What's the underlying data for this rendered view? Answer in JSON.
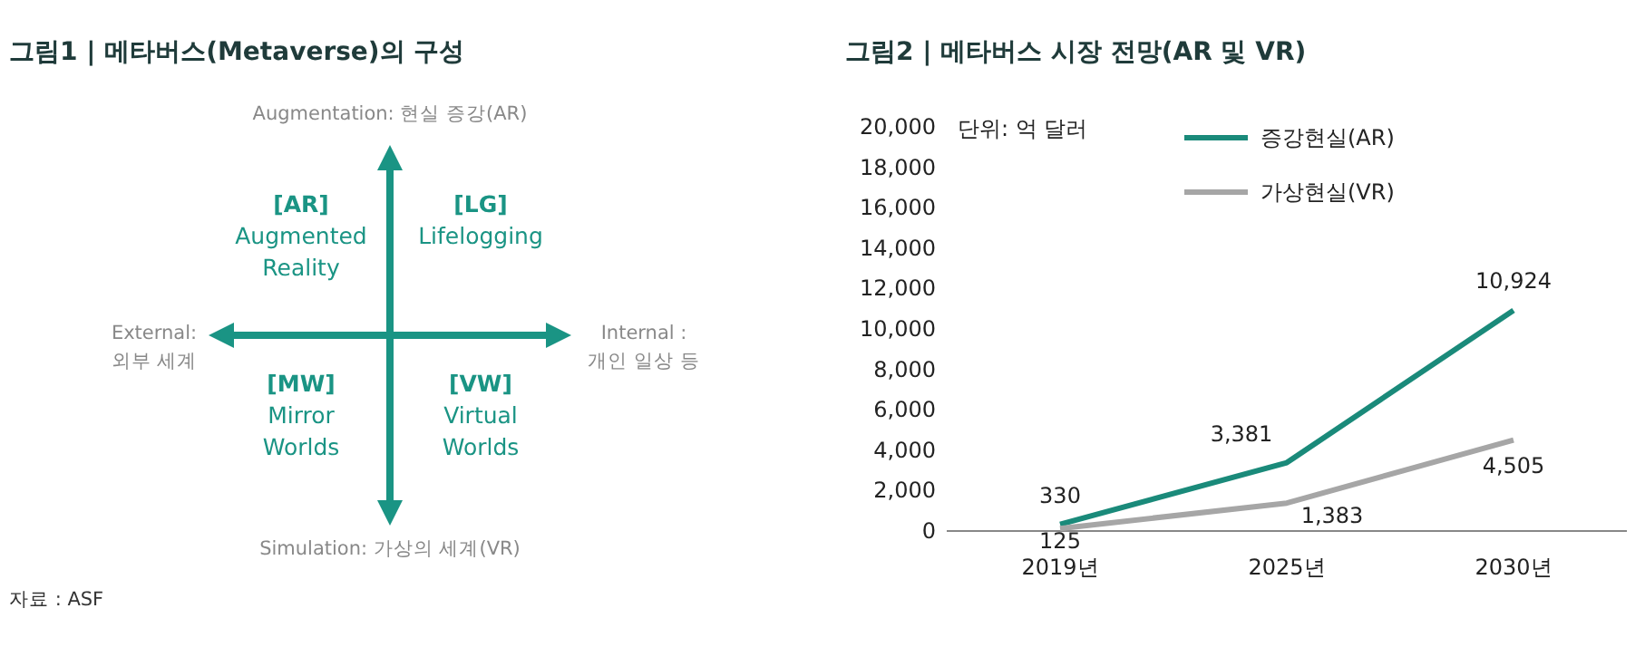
{
  "chart_data": [
    {
      "type": "other",
      "title": "그림1 | 메타버스(Metaverse)의 구성",
      "annotations": [
        "Augmentation: 현실 증강(AR)",
        "Simulation: 가상의 세계(VR)",
        "External:\n외부 세계",
        "Internal :\n개인 일상 등",
        "[AR]\nAugmented\nReality",
        "[LG]\nLifelogging",
        "[MW]\nMirror\nWorlds",
        "[VW]\nVirtual\nWorlds",
        "자료 : ASF"
      ],
      "color": "#1a9484"
    },
    {
      "type": "line",
      "title": "그림2 | 메타버스 시장 전망(AR 및 VR)",
      "categories": [
        "2019년",
        "2025년",
        "2030년"
      ],
      "series": [
        {
          "name": "증강현실(AR)",
          "color": "#1a8a7a",
          "values": [
            330,
            3381,
            10924
          ],
          "value_labels": [
            "330",
            "3,381",
            "10,924"
          ]
        },
        {
          "name": "가상현실(VR)",
          "color": "#a6a6a6",
          "values": [
            125,
            1383,
            4505
          ],
          "value_labels": [
            "125",
            "1,383",
            "4,505"
          ]
        }
      ],
      "ylim": [
        0,
        20000
      ],
      "yticks": [
        0,
        {
          "value": 2000,
          "label": "2,000"
        },
        {
          "value": 4000,
          "label": "4,000"
        },
        {
          "value": 6000,
          "label": "6,000"
        },
        {
          "value": 8000,
          "label": "8,000"
        },
        {
          "value": 10000,
          "label": "10,000"
        },
        {
          "value": 12000,
          "label": "12,000"
        },
        {
          "value": 14000,
          "label": "14,000"
        },
        {
          "value": 16000,
          "label": "16,000"
        },
        {
          "value": 18000,
          "label": "18,000"
        },
        {
          "value": 20000,
          "label": "20,000"
        }
      ],
      "annotations": [
        "단위: 억 달러"
      ],
      "legend": "top left",
      "marker": "none",
      "line_style": "solid",
      "grid": false
    }
  ]
}
